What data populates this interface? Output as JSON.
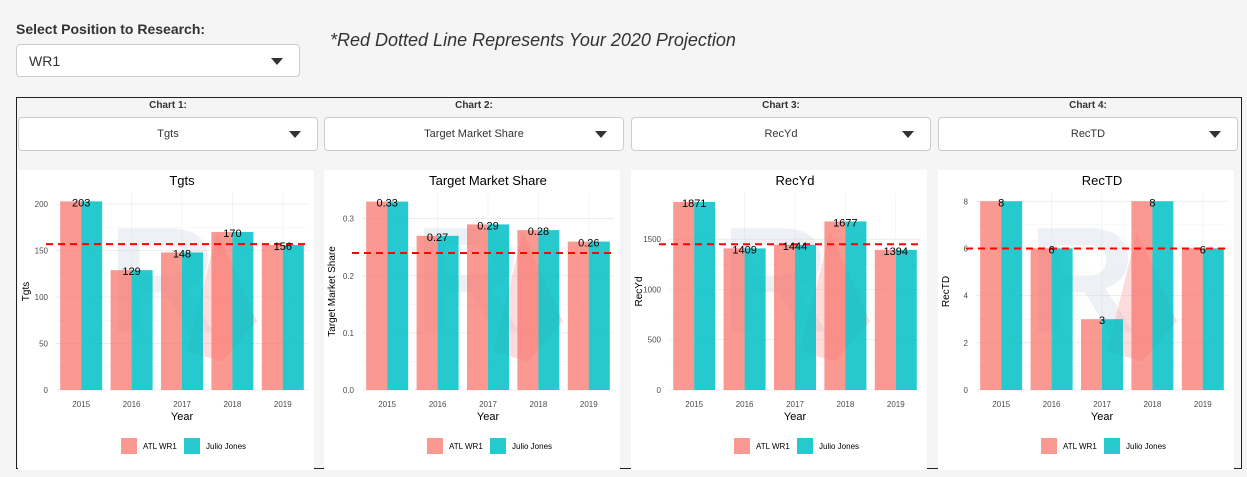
{
  "controls": {
    "position_label": "Select Position to Research:",
    "position_value": "WR1",
    "note": "*Red Dotted Line Represents Your 2020 Projection"
  },
  "chart_labels": [
    "Chart 1:",
    "Chart 2:",
    "Chart 3:",
    "Chart 4:"
  ],
  "chart_selects": [
    "Tgts",
    "Target Market Share",
    "RecYd",
    "RecTD"
  ],
  "colors": {
    "series1": "#F8766D",
    "series2": "#00BFC4",
    "projection": "#FF0000",
    "watermark": "#ccd6e0",
    "watermark_red": "#ff9a9a"
  },
  "chart_data": [
    {
      "type": "bar",
      "title": "Tgts",
      "xlabel": "Year",
      "ylabel": "Tgts",
      "categories": [
        "2015",
        "2016",
        "2017",
        "2018",
        "2019"
      ],
      "series": [
        {
          "name": "ATL WR1",
          "values": [
            203,
            129,
            148,
            170,
            156
          ]
        },
        {
          "name": "Julio Jones",
          "values": [
            203,
            129,
            148,
            170,
            156
          ]
        }
      ],
      "data_labels": [
        "203",
        "129",
        "148",
        "170",
        "156"
      ],
      "projection": 157,
      "ylim": [
        0,
        212
      ],
      "yticks": [
        0,
        50,
        100,
        150,
        200
      ],
      "yticklabels": [
        "0",
        "50",
        "100",
        "150",
        "200"
      ],
      "legend": "bottom",
      "grid": true
    },
    {
      "type": "bar",
      "title": "Target Market Share",
      "xlabel": "Year",
      "ylabel": "Target Market Share",
      "categories": [
        "2015",
        "2016",
        "2017",
        "2018",
        "2019"
      ],
      "series": [
        {
          "name": "ATL WR1",
          "values": [
            0.33,
            0.27,
            0.29,
            0.28,
            0.26
          ]
        },
        {
          "name": "Julio Jones",
          "values": [
            0.33,
            0.27,
            0.29,
            0.28,
            0.26
          ]
        }
      ],
      "data_labels": [
        "0.33",
        "0.27",
        "0.29",
        "0.28",
        "0.26"
      ],
      "projection": 0.24,
      "ylim": [
        0,
        0.345
      ],
      "yticks": [
        0,
        0.1,
        0.2,
        0.3
      ],
      "yticklabels": [
        "0.0",
        "0.1",
        "0.2",
        "0.3"
      ],
      "legend": "bottom",
      "grid": true
    },
    {
      "type": "bar",
      "title": "RecYd",
      "xlabel": "Year",
      "ylabel": "RecYd",
      "categories": [
        "2015",
        "2016",
        "2017",
        "2018",
        "2019"
      ],
      "series": [
        {
          "name": "ATL WR1",
          "values": [
            1871,
            1409,
            1444,
            1677,
            1394
          ]
        },
        {
          "name": "Julio Jones",
          "values": [
            1871,
            1409,
            1444,
            1677,
            1394
          ]
        }
      ],
      "data_labels": [
        "1871",
        "1409",
        "1444",
        "1677",
        "1394"
      ],
      "projection": 1450,
      "ylim": [
        0,
        1960
      ],
      "yticks": [
        0,
        500,
        1000,
        1500
      ],
      "yticklabels": [
        "0",
        "500",
        "1000",
        "1500"
      ],
      "legend": "bottom",
      "grid": true
    },
    {
      "type": "bar",
      "title": "RecTD",
      "xlabel": "Year",
      "ylabel": "RecTD",
      "categories": [
        "2015",
        "2016",
        "2017",
        "2018",
        "2019"
      ],
      "series": [
        {
          "name": "ATL WR1",
          "values": [
            8,
            6,
            3,
            8,
            6
          ]
        },
        {
          "name": "Julio Jones",
          "values": [
            8,
            6,
            3,
            8,
            6
          ]
        }
      ],
      "data_labels": [
        "8",
        "6",
        "3",
        "8",
        "6"
      ],
      "projection": 6,
      "ylim": [
        0,
        8.35
      ],
      "yticks": [
        0,
        2,
        4,
        6,
        8
      ],
      "yticklabels": [
        "0",
        "2",
        "4",
        "6",
        "8"
      ],
      "legend": "bottom",
      "grid": true
    }
  ]
}
